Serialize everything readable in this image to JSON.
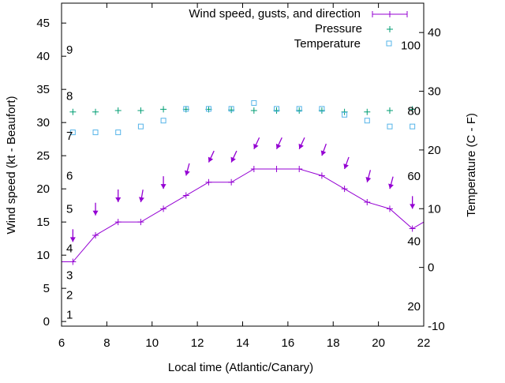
{
  "chart_data": {
    "type": "line",
    "xlabel": "Local time (Atlantic/Canary)",
    "ylabel": "Wind speed (kt - Beaufort)",
    "y2label": "Temperature (C - F)",
    "xlim": [
      6,
      22
    ],
    "ylim": [
      -0.7,
      48
    ],
    "y2lim": [
      -10,
      45
    ],
    "xticks": [
      6,
      8,
      10,
      12,
      14,
      16,
      18,
      20,
      22
    ],
    "yticks": [
      0,
      5,
      10,
      15,
      20,
      25,
      30,
      35,
      40,
      45
    ],
    "y2ticks": [
      -10,
      0,
      10,
      20,
      30,
      40
    ],
    "beaufort_labels": [
      {
        "label": "1",
        "kt": 1
      },
      {
        "label": "2",
        "kt": 4
      },
      {
        "label": "3",
        "kt": 7
      },
      {
        "label": "4",
        "kt": 11
      },
      {
        "label": "5",
        "kt": 17
      },
      {
        "label": "6",
        "kt": 22
      },
      {
        "label": "7",
        "kt": 28
      },
      {
        "label": "8",
        "kt": 34
      },
      {
        "label": "9",
        "kt": 41
      }
    ],
    "fahrenheit_labels": [
      {
        "label": "20",
        "f": 20
      },
      {
        "label": "40",
        "f": 40
      },
      {
        "label": "60",
        "f": 60
      },
      {
        "label": "80",
        "f": 80
      },
      {
        "label": "100",
        "f": 100
      }
    ],
    "legend": {
      "position": "top-right",
      "entries": [
        "Wind speed, gusts, and direction",
        "Pressure",
        "Temperature"
      ]
    },
    "colors": {
      "wind": "#9400d3",
      "pressure": "#009e73",
      "temperature": "#56b4e9"
    },
    "x": [
      6.5,
      7.5,
      8.5,
      9.5,
      10.5,
      11.5,
      12.5,
      13.5,
      14.5,
      15.5,
      16.5,
      17.5,
      18.5,
      19.5,
      20.5,
      21.5
    ],
    "series": [
      {
        "name": "Wind speed",
        "axis": "y",
        "values": [
          9,
          13,
          15,
          15,
          17,
          19,
          21,
          21,
          23,
          23,
          23,
          22,
          20,
          18,
          17,
          14
        ],
        "line_start": [
          6,
          9
        ],
        "line_end": [
          22,
          15
        ]
      },
      {
        "name": "Gusts",
        "axis": "y",
        "values": [
          12,
          16,
          18,
          18,
          20,
          22,
          24,
          24,
          26,
          26,
          26,
          25,
          23,
          21,
          20,
          17
        ]
      },
      {
        "name": "Wind direction (deg)",
        "values": [
          0,
          0,
          0,
          10,
          0,
          15,
          25,
          25,
          25,
          25,
          25,
          20,
          20,
          15,
          15,
          0
        ]
      },
      {
        "name": "Pressure",
        "axis": "y",
        "values": [
          31.6,
          31.6,
          31.8,
          31.8,
          32.0,
          32.0,
          32.0,
          31.9,
          31.8,
          31.8,
          31.8,
          31.8,
          31.6,
          31.6,
          31.8,
          32.0
        ]
      },
      {
        "name": "Temperature",
        "axis": "y2",
        "values": [
          23,
          23,
          23,
          24,
          25,
          27,
          27,
          27,
          28,
          27,
          27,
          27,
          26,
          25,
          24,
          24
        ]
      }
    ]
  }
}
